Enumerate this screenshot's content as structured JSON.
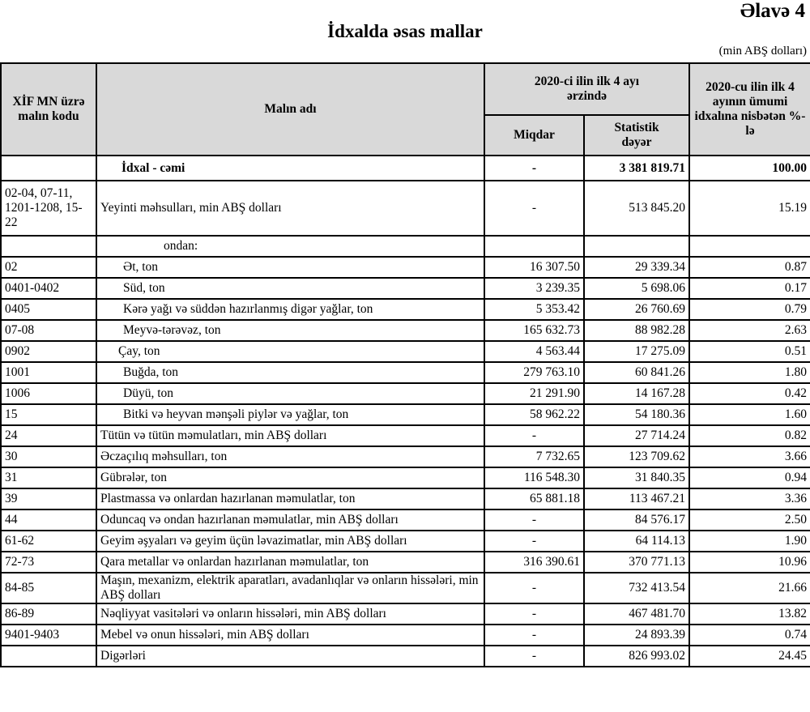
{
  "appendix_label": "Əlavə 4",
  "title": "İdxalda əsas mallar",
  "unit_note": "(min ABŞ dolları)",
  "header": {
    "code": "XİF MN üzrə malın kodu",
    "name": "Malın adı",
    "period": "2020-ci ilin ilk 4 ayı ərzində",
    "quantity": "Miqdar",
    "value": "Statistik dəyər",
    "share": "2020-cu ilin ilk 4 ayının ümumi idxalına nisbətən %-lə"
  },
  "total": {
    "code": "",
    "name": "İdxal - cəmi",
    "quantity": "-",
    "value": "3 381 819.71",
    "share": "100.00"
  },
  "food": {
    "code": "02-04, 07-11, 1201-1208, 15-22",
    "name": "Yeyinti məhsulları, min ABŞ dolları",
    "quantity": "-",
    "value": "513 845.20",
    "share": "15.19"
  },
  "ondan": "ondan:",
  "sub_rows": [
    {
      "code": "02",
      "name": "Ət, ton",
      "quantity": "16 307.50",
      "value": "29 339.34",
      "share": "0.87"
    },
    {
      "code": "0401-0402",
      "name": "Süd, ton",
      "quantity": "3 239.35",
      "value": "5 698.06",
      "share": "0.17"
    },
    {
      "code": "0405",
      "name": "Kərə yağı və süddən hazırlanmış digər yağlar, ton",
      "quantity": "5 353.42",
      "value": "26 760.69",
      "share": "0.79"
    },
    {
      "code": "07-08",
      "name": "Meyvə-tərəvəz, ton",
      "quantity": "165 632.73",
      "value": "88 982.28",
      "share": "2.63"
    },
    {
      "code": "0902",
      "name": "Çay, ton",
      "quantity": "4 563.44",
      "value": "17 275.09",
      "share": "0.51"
    },
    {
      "code": "1001",
      "name": "Buğda, ton",
      "quantity": "279 763.10",
      "value": "60 841.26",
      "share": "1.80"
    },
    {
      "code": "1006",
      "name": "Düyü, ton",
      "quantity": "21 291.90",
      "value": "14 167.28",
      "share": "0.42"
    },
    {
      "code": "15",
      "name": "Bitki və heyvan mənşəli piylər və yağlar, ton",
      "quantity": "58 962.22",
      "value": "54 180.36",
      "share": "1.60"
    }
  ],
  "rows": [
    {
      "code": "24",
      "name": "Tütün və tütün məmulatları, min ABŞ dolları",
      "quantity": "-",
      "value": "27 714.24",
      "share": "0.82"
    },
    {
      "code": "30",
      "name": "Əczaçılıq məhsulları, ton",
      "quantity": "7 732.65",
      "value": "123 709.62",
      "share": "3.66"
    },
    {
      "code": "31",
      "name": "Gübrələr, ton",
      "quantity": "116 548.30",
      "value": "31 840.35",
      "share": "0.94"
    },
    {
      "code": "39",
      "name": "Plastmassa və onlardan hazırlanan məmulatlar, ton",
      "quantity": "65 881.18",
      "value": "113 467.21",
      "share": "3.36"
    },
    {
      "code": "44",
      "name": "Oduncaq və ondan hazırlanan məmulatlar, min ABŞ dolları",
      "quantity": "-",
      "value": "84 576.17",
      "share": "2.50"
    },
    {
      "code": "61-62",
      "name": "Geyim əşyaları və geyim üçün ləvazimatlar, min ABŞ dolları",
      "quantity": "-",
      "value": "64 114.13",
      "share": "1.90"
    },
    {
      "code": "72-73",
      "name": "Qara metallar və onlardan hazırlanan məmulatlar, ton",
      "quantity": "316 390.61",
      "value": "370 771.13",
      "share": "10.96"
    },
    {
      "code": "84-85",
      "name": "Maşın, mexanizm, elektrik aparatları, avadanlıqlar və onların hissələri, min ABŞ dolları",
      "quantity": "-",
      "value": "732 413.54",
      "share": "21.66"
    },
    {
      "code": "86-89",
      "name": "Nəqliyyat vasitələri və onların hissələri, min ABŞ dolları",
      "quantity": "-",
      "value": "467 481.70",
      "share": "13.82"
    },
    {
      "code": "9401-9403",
      "name": "Mebel və onun hissələri, min ABŞ dolları",
      "quantity": "-",
      "value": "24 893.39",
      "share": "0.74"
    },
    {
      "code": "",
      "name": "Digərləri",
      "quantity": "-",
      "value": "826 993.02",
      "share": "24.45"
    }
  ]
}
